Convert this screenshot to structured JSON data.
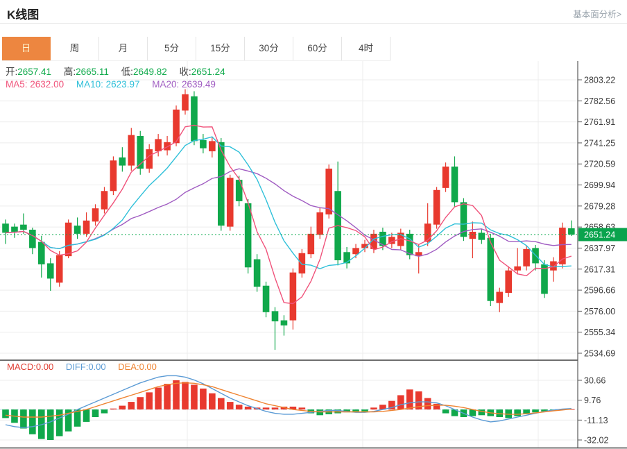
{
  "header": {
    "title": "K线图",
    "link": "基本面分析>"
  },
  "tabs": {
    "items": [
      "日",
      "周",
      "月",
      "5分",
      "15分",
      "30分",
      "60分",
      "4时"
    ],
    "active_index": 0
  },
  "readout": {
    "open_label": "开:",
    "open": "2657.41",
    "high_label": "高:",
    "high": "2665.11",
    "low_label": "低:",
    "low": "2649.82",
    "close_label": "收:",
    "close": "2651.24",
    "ma5_label": "MA5:",
    "ma5": "2632.00",
    "ma10_label": "MA10:",
    "ma10": "2623.97",
    "ma20_label": "MA20:",
    "ma20": "2639.49"
  },
  "macd_readout": {
    "macd": "MACD:0.00",
    "diff": "DIFF:0.00",
    "dea": "DEA:0.00"
  },
  "colors": {
    "up": "#e8392e",
    "down": "#10a84b",
    "badge": "#0aa34d",
    "ma5": "#f0527a",
    "ma10": "#2fc0d9",
    "ma20": "#a05cc2",
    "diff": "#5b9bd5",
    "dea": "#ef8432",
    "active_tab": "#ed8640",
    "grid": "#ececec",
    "axis": "#5a5a5a",
    "current_price_line": "#0aa84d",
    "macd_zero_line": "#bfe0f0"
  },
  "chart_data": [
    {
      "type": "candlestick",
      "title": "K线图 (日)",
      "legend": [
        "MA5",
        "MA10",
        "MA20"
      ],
      "y_axis_ticks": [
        2803.22,
        2782.56,
        2761.91,
        2741.25,
        2720.59,
        2699.94,
        2679.28,
        2658.63,
        2637.97,
        2617.31,
        2596.66,
        2576.0,
        2555.34,
        2534.69
      ],
      "ylim": [
        2534.69,
        2803.22
      ],
      "current_price": 2651.24,
      "last_candle": {
        "open": 2657.41,
        "high": 2665.11,
        "low": 2649.82,
        "close": 2651.24
      },
      "ma_periods": [
        5,
        10,
        20
      ],
      "grid": true,
      "candles_ohlc": [
        [
          2662,
          2666,
          2642,
          2653
        ],
        [
          2659,
          2662,
          2648,
          2654
        ],
        [
          2661,
          2672,
          2652,
          2656
        ],
        [
          2656,
          2658,
          2632,
          2638
        ],
        [
          2644,
          2650,
          2609,
          2622
        ],
        [
          2623,
          2628,
          2596,
          2608
        ],
        [
          2604,
          2635,
          2600,
          2631
        ],
        [
          2630,
          2666,
          2628,
          2663
        ],
        [
          2660,
          2668,
          2647,
          2652
        ],
        [
          2652,
          2673,
          2649,
          2665
        ],
        [
          2664,
          2681,
          2660,
          2677
        ],
        [
          2676,
          2698,
          2672,
          2694
        ],
        [
          2694,
          2728,
          2690,
          2724
        ],
        [
          2727,
          2737,
          2713,
          2719
        ],
        [
          2719,
          2756,
          2714,
          2749
        ],
        [
          2748,
          2753,
          2710,
          2716
        ],
        [
          2716,
          2740,
          2712,
          2735
        ],
        [
          2733,
          2750,
          2728,
          2745
        ],
        [
          2734,
          2748,
          2729,
          2742
        ],
        [
          2741,
          2778,
          2738,
          2774
        ],
        [
          2773,
          2794,
          2769,
          2789
        ],
        [
          2787,
          2792,
          2739,
          2743
        ],
        [
          2744,
          2750,
          2731,
          2736
        ],
        [
          2733,
          2747,
          2727,
          2743
        ],
        [
          2742,
          2746,
          2655,
          2660
        ],
        [
          2659,
          2710,
          2655,
          2707
        ],
        [
          2705,
          2709,
          2679,
          2684
        ],
        [
          2682,
          2686,
          2613,
          2619
        ],
        [
          2627,
          2632,
          2595,
          2600
        ],
        [
          2601,
          2605,
          2570,
          2575
        ],
        [
          2576,
          2580,
          2538,
          2566
        ],
        [
          2567,
          2572,
          2552,
          2562
        ],
        [
          2567,
          2618,
          2558,
          2614
        ],
        [
          2613,
          2637,
          2609,
          2633
        ],
        [
          2632,
          2659,
          2628,
          2652
        ],
        [
          2651,
          2678,
          2647,
          2673
        ],
        [
          2671,
          2720,
          2667,
          2716
        ],
        [
          2694,
          2723,
          2621,
          2626
        ],
        [
          2634,
          2639,
          2618,
          2623
        ],
        [
          2632,
          2642,
          2628,
          2638
        ],
        [
          2638,
          2646,
          2634,
          2642
        ],
        [
          2637,
          2656,
          2633,
          2652
        ],
        [
          2654,
          2658,
          2636,
          2640
        ],
        [
          2642,
          2653,
          2638,
          2649
        ],
        [
          2640,
          2657,
          2636,
          2653
        ],
        [
          2652,
          2656,
          2627,
          2631
        ],
        [
          2630,
          2642,
          2613,
          2634
        ],
        [
          2644,
          2682,
          2640,
          2662
        ],
        [
          2661,
          2698,
          2657,
          2695
        ],
        [
          2697,
          2722,
          2693,
          2718
        ],
        [
          2718,
          2728,
          2678,
          2683
        ],
        [
          2683,
          2687,
          2645,
          2649
        ],
        [
          2647,
          2664,
          2628,
          2654
        ],
        [
          2653,
          2657,
          2642,
          2646
        ],
        [
          2648,
          2652,
          2581,
          2586
        ],
        [
          2584,
          2599,
          2575,
          2595
        ],
        [
          2594,
          2620,
          2590,
          2616
        ],
        [
          2616,
          2638,
          2612,
          2620
        ],
        [
          2620,
          2640,
          2616,
          2637
        ],
        [
          2638,
          2641,
          2616,
          2623
        ],
        [
          2622,
          2626,
          2589,
          2593
        ],
        [
          2616,
          2629,
          2605,
          2625
        ],
        [
          2622,
          2663,
          2618,
          2658
        ],
        [
          2657.41,
          2665.11,
          2649.82,
          2651.24
        ]
      ]
    },
    {
      "type": "bar",
      "title": "MACD",
      "y_axis_ticks": [
        30.66,
        9.76,
        -11.13,
        -32.02
      ],
      "ylim": [
        -32.02,
        30.66
      ],
      "histogram": [
        -9,
        -14,
        -20,
        -26,
        -31,
        -32.02,
        -28,
        -23,
        -18,
        -13,
        -8,
        -4,
        1,
        4,
        8,
        13,
        18,
        23,
        27,
        30.66,
        29,
        26,
        22,
        17,
        12,
        8,
        5,
        3,
        2,
        2,
        2,
        3,
        3,
        2,
        -4,
        -6,
        -5,
        -4,
        -3,
        -2,
        -2,
        2,
        5,
        9,
        15,
        21,
        19,
        12,
        6,
        -4,
        -7,
        -8,
        -7,
        -6,
        -7,
        -8,
        -9,
        -7,
        -5,
        -3,
        -2,
        -1,
        0.5,
        0.5
      ],
      "series": [
        {
          "name": "DIFF",
          "values": [
            -16,
            -18,
            -19,
            -18,
            -16,
            -13,
            -9,
            -5,
            0,
            4,
            8,
            12,
            16,
            20,
            24,
            28,
            31,
            34,
            35.5,
            35.5,
            34,
            31,
            27,
            22,
            17,
            12,
            8,
            4,
            1,
            -2,
            -4,
            -5,
            -5,
            -4,
            -3,
            -2,
            -1,
            -1,
            -2,
            -3,
            -3,
            -2,
            0,
            2,
            5,
            7,
            8,
            8,
            7,
            4,
            0,
            -4,
            -8,
            -11,
            -13,
            -12,
            -10,
            -8,
            -6,
            -4,
            -2,
            -0.5,
            0.5,
            1
          ]
        },
        {
          "name": "DEA",
          "values": [
            -6,
            -7,
            -8,
            -8,
            -8,
            -7,
            -6,
            -4,
            -2,
            0,
            3,
            6,
            9,
            12,
            15,
            18,
            21,
            24,
            26,
            27.5,
            28,
            27.5,
            26,
            24,
            21,
            18,
            15,
            12,
            9,
            6,
            4,
            2,
            0,
            -1,
            -2,
            -2.5,
            -2.5,
            -2.5,
            -2.5,
            -2.5,
            -2.5,
            -2.5,
            -2,
            -1,
            0,
            1.5,
            3,
            4,
            4.5,
            4.5,
            3.5,
            2,
            0,
            -2,
            -3.5,
            -4.5,
            -5,
            -5,
            -4.5,
            -3.5,
            -2.5,
            -1.5,
            -0.5,
            0.5
          ]
        }
      ]
    }
  ]
}
